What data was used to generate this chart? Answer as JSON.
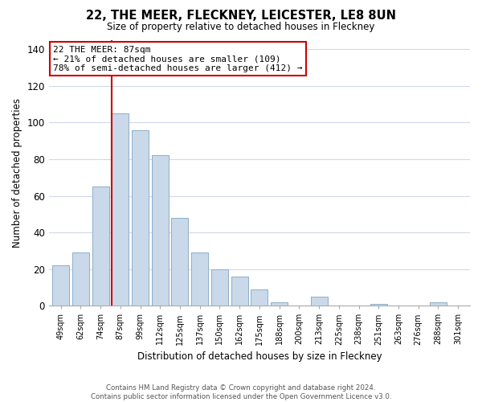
{
  "title": "22, THE MEER, FLECKNEY, LEICESTER, LE8 8UN",
  "subtitle": "Size of property relative to detached houses in Fleckney",
  "xlabel": "Distribution of detached houses by size in Fleckney",
  "ylabel": "Number of detached properties",
  "bar_labels": [
    "49sqm",
    "62sqm",
    "74sqm",
    "87sqm",
    "99sqm",
    "112sqm",
    "125sqm",
    "137sqm",
    "150sqm",
    "162sqm",
    "175sqm",
    "188sqm",
    "200sqm",
    "213sqm",
    "225sqm",
    "238sqm",
    "251sqm",
    "263sqm",
    "276sqm",
    "288sqm",
    "301sqm"
  ],
  "bar_values": [
    22,
    29,
    65,
    105,
    96,
    82,
    48,
    29,
    20,
    16,
    9,
    2,
    0,
    5,
    0,
    0,
    1,
    0,
    0,
    2,
    0
  ],
  "bar_color": "#c9d9ea",
  "bar_edge_color": "#8baec8",
  "highlight_bar_index": 3,
  "vline_color": "#cc0000",
  "ylim": [
    0,
    145
  ],
  "yticks": [
    0,
    20,
    40,
    60,
    80,
    100,
    120,
    140
  ],
  "annotation_title": "22 THE MEER: 87sqm",
  "annotation_line1": "← 21% of detached houses are smaller (109)",
  "annotation_line2": "78% of semi-detached houses are larger (412) →",
  "annotation_box_color": "#ffffff",
  "annotation_box_edge": "#cc0000",
  "footer_line1": "Contains HM Land Registry data © Crown copyright and database right 2024.",
  "footer_line2": "Contains public sector information licensed under the Open Government Licence v3.0.",
  "background_color": "#ffffff",
  "grid_color": "#d0d8e8"
}
